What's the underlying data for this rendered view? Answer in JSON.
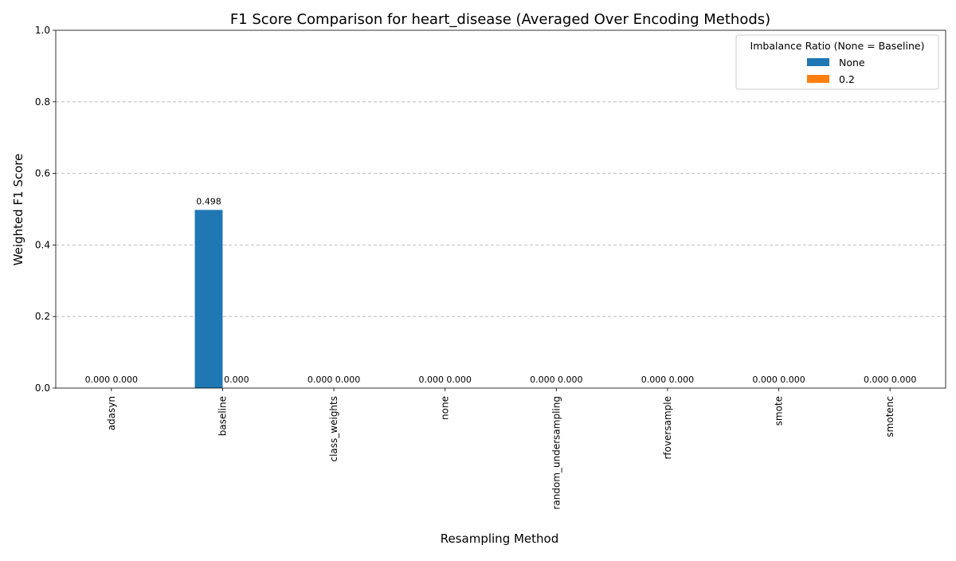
{
  "chart_data": {
    "type": "bar",
    "title": "F1 Score Comparison for heart_disease (Averaged Over Encoding Methods)",
    "xlabel": "Resampling Method",
    "ylabel": "Weighted F1 Score",
    "ylim": [
      0,
      1.0
    ],
    "yticks": [
      "0.0",
      "0.2",
      "0.4",
      "0.6",
      "0.8",
      "1.0"
    ],
    "ytick_values": [
      0.0,
      0.2,
      0.4,
      0.6,
      0.8,
      1.0
    ],
    "grid": "horizontal dashed",
    "categories": [
      "adasyn",
      "baseline",
      "class_weights",
      "none",
      "random_undersampling",
      "rfoversample",
      "smote",
      "smotenc"
    ],
    "series": [
      {
        "name": "None",
        "color": "#1f77b4",
        "values": [
          0.0,
          0.498,
          0.0,
          0.0,
          0.0,
          0.0,
          0.0,
          0.0
        ],
        "labels": [
          "0.000",
          "0.498",
          "0.000",
          "0.000",
          "0.000",
          "0.000",
          "0.000",
          "0.000"
        ]
      },
      {
        "name": "0.2",
        "color": "#ff7f0e",
        "values": [
          0.0,
          0.0,
          0.0,
          0.0,
          0.0,
          0.0,
          0.0,
          0.0
        ],
        "labels": [
          "0.000",
          "0.000",
          "0.000",
          "0.000",
          "0.000",
          "0.000",
          "0.000",
          "0.000"
        ]
      }
    ],
    "legend": {
      "title": "Imbalance Ratio (None = Baseline)",
      "placement": "top-right"
    }
  }
}
